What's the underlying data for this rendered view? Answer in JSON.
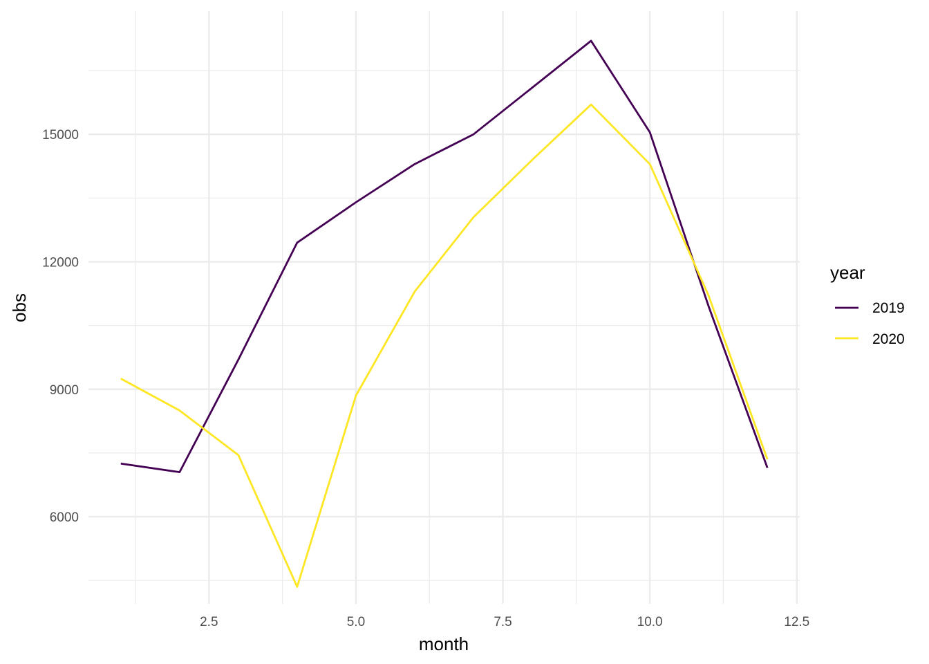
{
  "chart_data": {
    "type": "line",
    "title": "",
    "xlabel": "month",
    "ylabel": "obs",
    "x": [
      1,
      2,
      3,
      4,
      5,
      6,
      7,
      8,
      9,
      10,
      11,
      12
    ],
    "xlim": [
      0.45,
      12.55
    ],
    "ylim": [
      3950,
      17900
    ],
    "x_ticks": [
      2.5,
      5.0,
      7.5,
      10.0,
      12.5
    ],
    "x_tick_labels": [
      "2.5",
      "5.0",
      "7.5",
      "10.0",
      "12.5"
    ],
    "x_minor_ticks": [
      1.25,
      3.75,
      6.25,
      8.75,
      11.25
    ],
    "y_ticks": [
      6000,
      9000,
      12000,
      15000
    ],
    "y_tick_labels": [
      "6000",
      "9000",
      "12000",
      "15000"
    ],
    "y_minor_ticks": [
      4500,
      7500,
      10500,
      13500,
      16500
    ],
    "grid": true,
    "legend": {
      "title": "year",
      "position": "right"
    },
    "series": [
      {
        "name": "2019",
        "color": "#440154",
        "values": [
          7250,
          7050,
          9700,
          12450,
          13400,
          14300,
          15000,
          16100,
          17200,
          15050,
          10950,
          7150
        ]
      },
      {
        "name": "2020",
        "color": "#FDE725",
        "values": [
          9250,
          8500,
          7450,
          4350,
          8850,
          11300,
          13050,
          14400,
          15700,
          14300,
          11200,
          7350
        ]
      }
    ]
  }
}
